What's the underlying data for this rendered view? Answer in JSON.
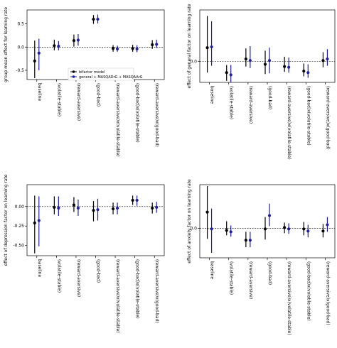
{
  "chart_data": [
    {
      "type": "scatter",
      "ylabel": "group mean effect for learning rate",
      "ylim": [
        -0.7,
        0.8
      ],
      "yticks": [
        -0.5,
        0.0,
        0.5
      ],
      "ytick_labels": [
        "-0.5",
        "0.0",
        "0.5"
      ],
      "categories": [
        "baseline",
        "(volatile-stable)",
        "(reward-aversive)",
        "(good-bad)",
        "(reward-aversive)x(volatile-stable)",
        "(good-bad)x(volatile-stable)",
        "(reward-aversive)x(good-bad)"
      ],
      "reference_line": 0,
      "legend": {
        "position": "lower-left",
        "entries": [
          "bifactor model",
          "general + MASQADrG + MASQAArG"
        ]
      },
      "series": [
        {
          "name": "bifactor model",
          "color": "#000000",
          "values": [
            -0.3,
            0.03,
            0.14,
            0.6,
            -0.03,
            -0.03,
            0.05
          ],
          "lower": [
            -0.67,
            -0.07,
            0.01,
            0.5,
            -0.1,
            -0.1,
            -0.04
          ],
          "upper": [
            0.14,
            0.16,
            0.27,
            0.69,
            0.04,
            0.05,
            0.15
          ]
        },
        {
          "name": "general + MASQADrG + MASQAArG",
          "color": "#1f1f9f",
          "values": [
            -0.13,
            0.02,
            0.15,
            0.6,
            -0.04,
            -0.04,
            0.06
          ],
          "lower": [
            -0.5,
            -0.07,
            0.03,
            0.51,
            -0.1,
            -0.11,
            -0.02
          ],
          "upper": [
            0.18,
            0.13,
            0.28,
            0.7,
            0.03,
            0.04,
            0.16
          ]
        }
      ]
    },
    {
      "type": "scatter",
      "ylabel": "effect of general factor on learning rate",
      "ylim": [
        -0.28,
        0.68
      ],
      "yticks": [
        0.0
      ],
      "ytick_labels": [
        "0.0"
      ],
      "categories": [
        "baseline",
        "(volatile-stable)",
        "(reward-aversive)",
        "(good-bad)",
        "(reward-aversive)x(volatile-stable)",
        "(good-bad)x(volatile-stable)",
        "(reward-aversive)x(good-bad)"
      ],
      "reference_line": 0,
      "series": [
        {
          "name": "bifactor model",
          "color": "#000000",
          "values": [
            0.18,
            -0.15,
            0.03,
            -0.04,
            -0.07,
            -0.13,
            0.01
          ],
          "lower": [
            -0.15,
            -0.26,
            -0.07,
            -0.17,
            -0.14,
            -0.2,
            -0.08
          ],
          "upper": [
            0.6,
            -0.05,
            0.17,
            0.14,
            0.06,
            -0.03,
            0.12
          ]
        },
        {
          "name": "general + MASQADrG + MASQAArG",
          "color": "#1f1f9f",
          "values": [
            0.19,
            -0.18,
            0.01,
            0.01,
            -0.08,
            -0.15,
            0.03
          ],
          "lower": [
            -0.06,
            -0.28,
            -0.09,
            -0.16,
            -0.15,
            -0.22,
            -0.06
          ],
          "upper": [
            0.53,
            -0.05,
            0.2,
            0.18,
            0.05,
            -0.04,
            0.16
          ]
        }
      ]
    },
    {
      "type": "scatter",
      "ylabel": "effect of depression factor on learning rate",
      "ylim": [
        -0.63,
        0.28
      ],
      "yticks": [
        -0.5,
        -0.25,
        0.0
      ],
      "ytick_labels": [
        "-0.50",
        "-0.25",
        "0.00"
      ],
      "categories": [
        "baseline",
        "(volatile-stable)",
        "(reward-aversive)",
        "(good-bad)",
        "(reward-aversive)x(volatile-stable)",
        "(good-bad)x(volatile-stable)",
        "(reward-aversive)x(good-bad)"
      ],
      "reference_line": 0,
      "series": [
        {
          "name": "bifactor model",
          "color": "#000000",
          "values": [
            -0.21,
            -0.01,
            0.02,
            -0.05,
            -0.03,
            0.08,
            -0.02
          ],
          "lower": [
            -0.6,
            -0.1,
            -0.07,
            -0.19,
            -0.1,
            0.02,
            -0.09
          ],
          "upper": [
            0.14,
            0.13,
            0.12,
            0.07,
            0.05,
            0.14,
            0.05
          ]
        },
        {
          "name": "general + MASQADrG + MASQAArG",
          "color": "#1f1f9f",
          "values": [
            -0.18,
            -0.02,
            -0.02,
            -0.04,
            -0.02,
            0.08,
            -0.01
          ],
          "lower": [
            -0.51,
            -0.12,
            -0.12,
            -0.18,
            -0.1,
            0.01,
            -0.08
          ],
          "upper": [
            0.13,
            0.13,
            0.09,
            0.1,
            0.05,
            0.14,
            0.06
          ]
        }
      ]
    },
    {
      "type": "scatter",
      "ylabel": "effect of anxiety factor on learning rate",
      "ylim": [
        -0.42,
        0.62
      ],
      "yticks": [
        0.0
      ],
      "ytick_labels": [
        "0.0"
      ],
      "categories": [
        "baseline",
        "(volatile-stable)",
        "(reward-aversive)",
        "(good-bad)",
        "(reward-aversive)x(volatile-stable)",
        "(good-bad)x(volatile-stable)",
        "(reward-aversive)x(good-bad)"
      ],
      "reference_line": 0,
      "series": [
        {
          "name": "bifactor model",
          "color": "#000000",
          "values": [
            0.23,
            -0.03,
            -0.17,
            -0.01,
            0.01,
            -0.01,
            -0.04
          ],
          "lower": [
            -0.15,
            -0.1,
            -0.27,
            -0.16,
            -0.07,
            -0.1,
            -0.13
          ],
          "upper": [
            0.6,
            0.1,
            -0.05,
            0.16,
            0.08,
            0.09,
            0.06
          ]
        },
        {
          "name": "general + MASQADrG + MASQAArG",
          "color": "#1f1f9f",
          "values": [
            -0.01,
            -0.05,
            -0.17,
            0.18,
            -0.01,
            -0.04,
            0.05
          ],
          "lower": [
            -0.35,
            -0.12,
            -0.27,
            0.03,
            -0.08,
            -0.13,
            -0.05
          ],
          "upper": [
            0.28,
            0.04,
            -0.05,
            0.35,
            0.07,
            0.05,
            0.16
          ]
        }
      ]
    }
  ]
}
